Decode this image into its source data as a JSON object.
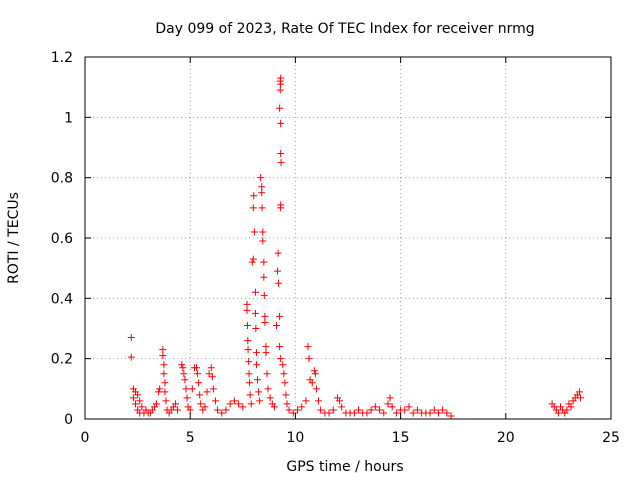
{
  "chart_data": {
    "type": "scatter",
    "title": "Day 099 of 2023, Rate Of TEC Index for receiver nrmg",
    "xlabel": "GPS time / hours",
    "ylabel": "ROTI / TECUs",
    "xlim": [
      0,
      25
    ],
    "ylim": [
      0,
      1.2
    ],
    "xticks": [
      0,
      5,
      10,
      15,
      20,
      25
    ],
    "xtick_labels": [
      "0",
      "5",
      "10",
      "15",
      "20",
      "25"
    ],
    "yticks": [
      0,
      0.2,
      0.4,
      0.6,
      0.8,
      1.0,
      1.2
    ],
    "ytick_labels": [
      "0",
      "0.2",
      "0.4",
      "0.6",
      "0.8",
      "1",
      "1.2"
    ],
    "grid": true,
    "marker": "+",
    "color": "#ff0000",
    "series": [
      {
        "points": [
          [
            2.2,
            0.27
          ],
          [
            2.2,
            0.205
          ],
          [
            2.3,
            0.1
          ],
          [
            2.3,
            0.07
          ],
          [
            2.4,
            0.09
          ],
          [
            2.4,
            0.05
          ],
          [
            2.5,
            0.08
          ],
          [
            2.5,
            0.03
          ],
          [
            2.6,
            0.06
          ],
          [
            2.6,
            0.02
          ],
          [
            2.7,
            0.04
          ],
          [
            2.8,
            0.02
          ],
          [
            2.9,
            0.03
          ],
          [
            3.0,
            0.02
          ],
          [
            3.1,
            0.02
          ],
          [
            3.2,
            0.03
          ],
          [
            3.3,
            0.04
          ],
          [
            3.4,
            0.05
          ],
          [
            3.5,
            0.09
          ],
          [
            3.55,
            0.1
          ],
          [
            3.7,
            0.23
          ],
          [
            3.7,
            0.21
          ],
          [
            3.75,
            0.18
          ],
          [
            3.75,
            0.15
          ],
          [
            3.8,
            0.12
          ],
          [
            3.8,
            0.09
          ],
          [
            3.85,
            0.06
          ],
          [
            3.9,
            0.03
          ],
          [
            4.0,
            0.02
          ],
          [
            4.1,
            0.03
          ],
          [
            4.2,
            0.04
          ],
          [
            4.3,
            0.05
          ],
          [
            4.4,
            0.03
          ],
          [
            4.6,
            0.18
          ],
          [
            4.65,
            0.17
          ],
          [
            4.7,
            0.15
          ],
          [
            4.75,
            0.13
          ],
          [
            4.8,
            0.1
          ],
          [
            4.85,
            0.07
          ],
          [
            4.9,
            0.04
          ],
          [
            5.0,
            0.03
          ],
          [
            5.1,
            0.1
          ],
          [
            5.2,
            0.17
          ],
          [
            5.3,
            0.17
          ],
          [
            5.35,
            0.15
          ],
          [
            5.4,
            0.12
          ],
          [
            5.45,
            0.08
          ],
          [
            5.5,
            0.05
          ],
          [
            5.6,
            0.03
          ],
          [
            5.7,
            0.04
          ],
          [
            5.8,
            0.09
          ],
          [
            5.9,
            0.15
          ],
          [
            6.0,
            0.17
          ],
          [
            6.05,
            0.14
          ],
          [
            6.1,
            0.1
          ],
          [
            6.2,
            0.06
          ],
          [
            6.3,
            0.03
          ],
          [
            6.5,
            0.02
          ],
          [
            6.7,
            0.03
          ],
          [
            6.9,
            0.05
          ],
          [
            7.1,
            0.06
          ],
          [
            7.3,
            0.05
          ],
          [
            7.5,
            0.04
          ],
          [
            7.7,
            0.38
          ],
          [
            7.7,
            0.36
          ],
          [
            7.72,
            0.31
          ],
          [
            7.74,
            0.26
          ],
          [
            7.75,
            0.23
          ],
          [
            7.78,
            0.19
          ],
          [
            7.8,
            0.15
          ],
          [
            7.82,
            0.12
          ],
          [
            7.85,
            0.08
          ],
          [
            7.9,
            0.05
          ],
          [
            7.95,
            0.52
          ],
          [
            8.0,
            0.53
          ],
          [
            8.0,
            0.7
          ],
          [
            8.02,
            0.74
          ],
          [
            8.05,
            0.62
          ],
          [
            8.1,
            0.42
          ],
          [
            8.1,
            0.35
          ],
          [
            8.12,
            0.3
          ],
          [
            8.15,
            0.22
          ],
          [
            8.15,
            0.18
          ],
          [
            8.2,
            0.13
          ],
          [
            8.25,
            0.09
          ],
          [
            8.3,
            0.06
          ],
          [
            8.35,
            0.8
          ],
          [
            8.4,
            0.77
          ],
          [
            8.4,
            0.75
          ],
          [
            8.42,
            0.7
          ],
          [
            8.45,
            0.62
          ],
          [
            8.45,
            0.59
          ],
          [
            8.5,
            0.52
          ],
          [
            8.5,
            0.47
          ],
          [
            8.52,
            0.41
          ],
          [
            8.55,
            0.34
          ],
          [
            8.55,
            0.32
          ],
          [
            8.6,
            0.24
          ],
          [
            8.6,
            0.22
          ],
          [
            8.65,
            0.15
          ],
          [
            8.7,
            0.1
          ],
          [
            8.8,
            0.07
          ],
          [
            8.9,
            0.05
          ],
          [
            9.0,
            0.04
          ],
          [
            9.1,
            0.31
          ],
          [
            9.15,
            0.49
          ],
          [
            9.18,
            0.55
          ],
          [
            9.2,
            0.45
          ],
          [
            9.25,
            0.34
          ],
          [
            9.25,
            0.24
          ],
          [
            9.3,
            0.2
          ],
          [
            9.3,
            0.7
          ],
          [
            9.3,
            0.71
          ],
          [
            9.32,
            0.85
          ],
          [
            9.3,
            0.88
          ],
          [
            9.3,
            0.98
          ],
          [
            9.25,
            1.03
          ],
          [
            9.28,
            1.09
          ],
          [
            9.3,
            1.11
          ],
          [
            9.28,
            1.12
          ],
          [
            9.3,
            1.13
          ],
          [
            9.4,
            0.18
          ],
          [
            9.45,
            0.15
          ],
          [
            9.5,
            0.12
          ],
          [
            9.55,
            0.08
          ],
          [
            9.6,
            0.05
          ],
          [
            9.7,
            0.03
          ],
          [
            9.9,
            0.02
          ],
          [
            10.1,
            0.03
          ],
          [
            10.3,
            0.04
          ],
          [
            10.5,
            0.06
          ],
          [
            10.6,
            0.24
          ],
          [
            10.65,
            0.2
          ],
          [
            10.7,
            0.13
          ],
          [
            10.8,
            0.12
          ],
          [
            10.9,
            0.16
          ],
          [
            10.95,
            0.15
          ],
          [
            11.0,
            0.1
          ],
          [
            11.1,
            0.06
          ],
          [
            11.2,
            0.03
          ],
          [
            11.4,
            0.02
          ],
          [
            11.6,
            0.02
          ],
          [
            11.8,
            0.03
          ],
          [
            12.0,
            0.07
          ],
          [
            12.1,
            0.06
          ],
          [
            12.2,
            0.04
          ],
          [
            12.4,
            0.02
          ],
          [
            12.6,
            0.02
          ],
          [
            12.8,
            0.02
          ],
          [
            13.0,
            0.03
          ],
          [
            13.2,
            0.02
          ],
          [
            13.4,
            0.02
          ],
          [
            13.6,
            0.03
          ],
          [
            13.8,
            0.04
          ],
          [
            14.0,
            0.03
          ],
          [
            14.2,
            0.02
          ],
          [
            14.4,
            0.05
          ],
          [
            14.5,
            0.07
          ],
          [
            14.6,
            0.04
          ],
          [
            14.8,
            0.02
          ],
          [
            15.0,
            0.03
          ],
          [
            15.2,
            0.03
          ],
          [
            15.4,
            0.04
          ],
          [
            15.6,
            0.02
          ],
          [
            15.8,
            0.03
          ],
          [
            16.0,
            0.02
          ],
          [
            16.2,
            0.02
          ],
          [
            16.4,
            0.02
          ],
          [
            16.6,
            0.03
          ],
          [
            16.8,
            0.02
          ],
          [
            17.0,
            0.03
          ],
          [
            17.2,
            0.02
          ],
          [
            17.4,
            0.01
          ],
          [
            22.2,
            0.05
          ],
          [
            22.3,
            0.04
          ],
          [
            22.4,
            0.03
          ],
          [
            22.5,
            0.02
          ],
          [
            22.6,
            0.04
          ],
          [
            22.7,
            0.03
          ],
          [
            22.8,
            0.02
          ],
          [
            22.9,
            0.03
          ],
          [
            23.0,
            0.05
          ],
          [
            23.1,
            0.04
          ],
          [
            23.2,
            0.06
          ],
          [
            23.3,
            0.07
          ],
          [
            23.4,
            0.08
          ],
          [
            23.5,
            0.09
          ],
          [
            23.55,
            0.07
          ]
        ]
      }
    ]
  }
}
